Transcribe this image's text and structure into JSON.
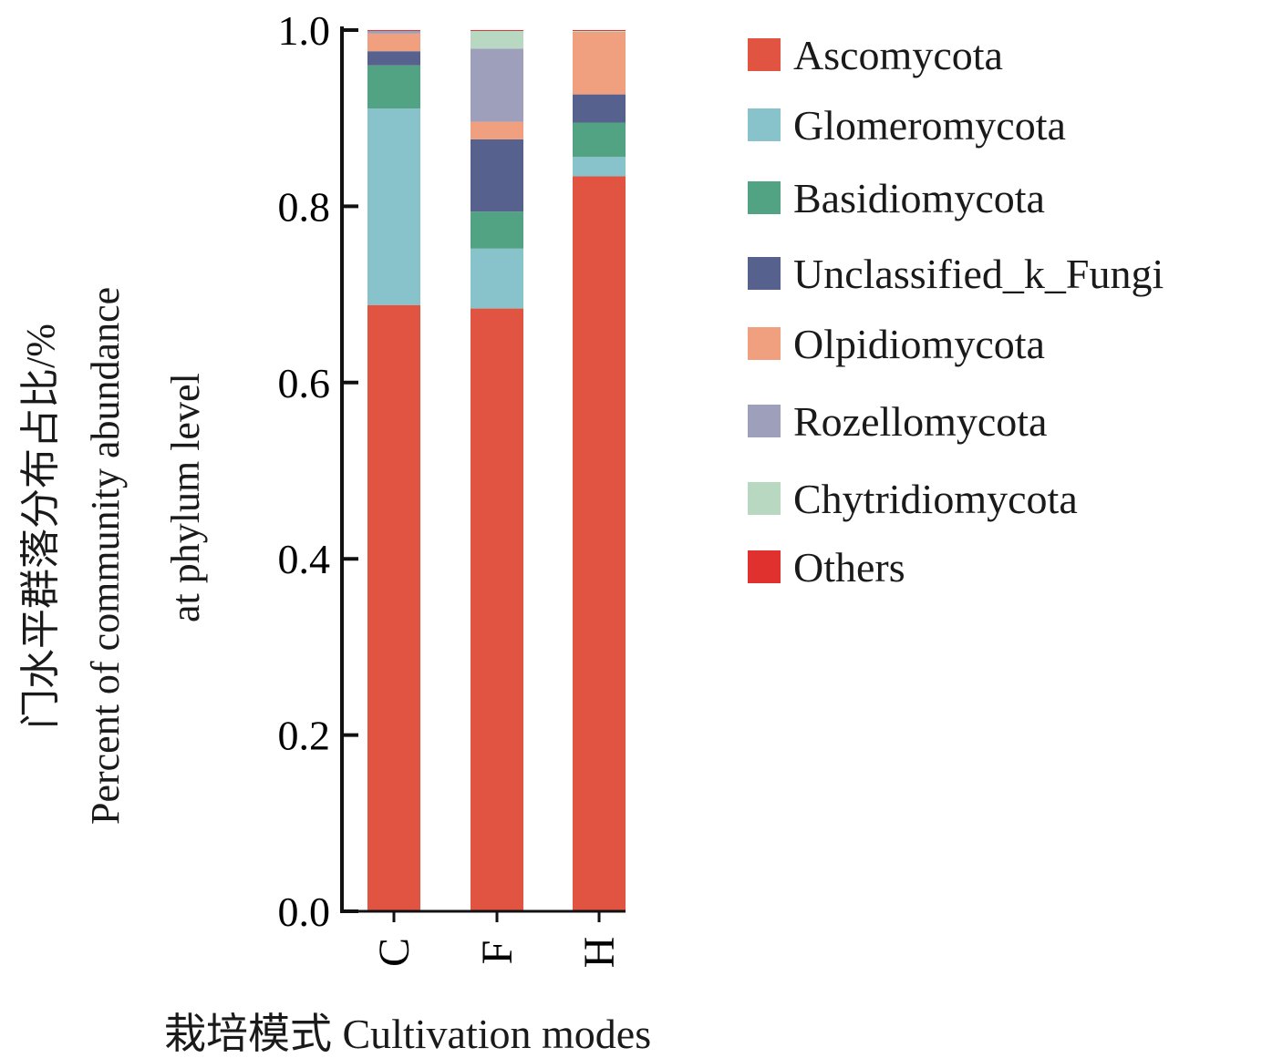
{
  "chart_data": {
    "type": "bar",
    "stacked": true,
    "title": "",
    "ylabel_cn": "门水平群落分布占比/%",
    "ylabel_en_1": "Percent of community abundance",
    "ylabel_en_2": "at phylum level",
    "xlabel": "栽培模式 Cultivation modes",
    "ylim": [
      0,
      1.0
    ],
    "yticks": [
      "0.0",
      "0.2",
      "0.4",
      "0.6",
      "0.8",
      "1.0"
    ],
    "categories": [
      "C",
      "F",
      "H"
    ],
    "legend_position": "right",
    "series": [
      {
        "name": "Ascomycota",
        "color": "#E05441",
        "values": [
          0.688,
          0.684,
          0.834
        ]
      },
      {
        "name": "Glomeromycota",
        "color": "#88C3CB",
        "values": [
          0.223,
          0.068,
          0.022
        ]
      },
      {
        "name": "Basidiomycota",
        "color": "#51A383",
        "values": [
          0.049,
          0.042,
          0.039
        ]
      },
      {
        "name": "Unclassified_k_Fungi",
        "color": "#56618E",
        "values": [
          0.016,
          0.082,
          0.032
        ]
      },
      {
        "name": "Olpidiomycota",
        "color": "#F0A07F",
        "values": [
          0.02,
          0.02,
          0.071
        ]
      },
      {
        "name": "Rozellomycota",
        "color": "#9E9FBA",
        "values": [
          0.003,
          0.083,
          0.0
        ]
      },
      {
        "name": "Chytridiomycota",
        "color": "#B8D8C2",
        "values": [
          0.0,
          0.02,
          0.001
        ]
      },
      {
        "name": "Others",
        "color": "#E0312E",
        "values": [
          0.001,
          0.001,
          0.001
        ]
      }
    ]
  }
}
